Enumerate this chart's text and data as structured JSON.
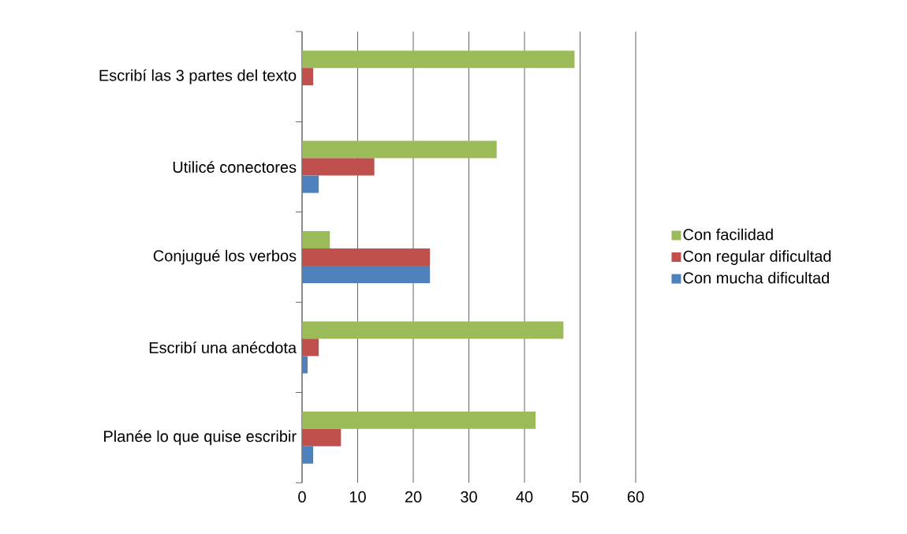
{
  "chart_data": {
    "type": "bar",
    "orientation": "horizontal",
    "categories": [
      "Escribí las 3 partes del texto",
      "Utilicé conectores",
      "Conjugué los verbos",
      "Escribí una anécdota",
      "Planée lo que quise escribir"
    ],
    "series": [
      {
        "name": "Con facilidad",
        "color": "#9bbb59",
        "values": [
          49,
          35,
          5,
          47,
          42
        ]
      },
      {
        "name": "Con regular dificultad",
        "color": "#c0504d",
        "values": [
          2,
          13,
          23,
          3,
          7
        ]
      },
      {
        "name": "Con mucha dificultad",
        "color": "#4f81bd",
        "values": [
          0,
          3,
          23,
          1,
          2
        ]
      }
    ],
    "xlim": [
      0,
      60
    ],
    "xticks": [
      0,
      10,
      20,
      30,
      40,
      50,
      60
    ],
    "grid": "x",
    "legend": "right"
  }
}
